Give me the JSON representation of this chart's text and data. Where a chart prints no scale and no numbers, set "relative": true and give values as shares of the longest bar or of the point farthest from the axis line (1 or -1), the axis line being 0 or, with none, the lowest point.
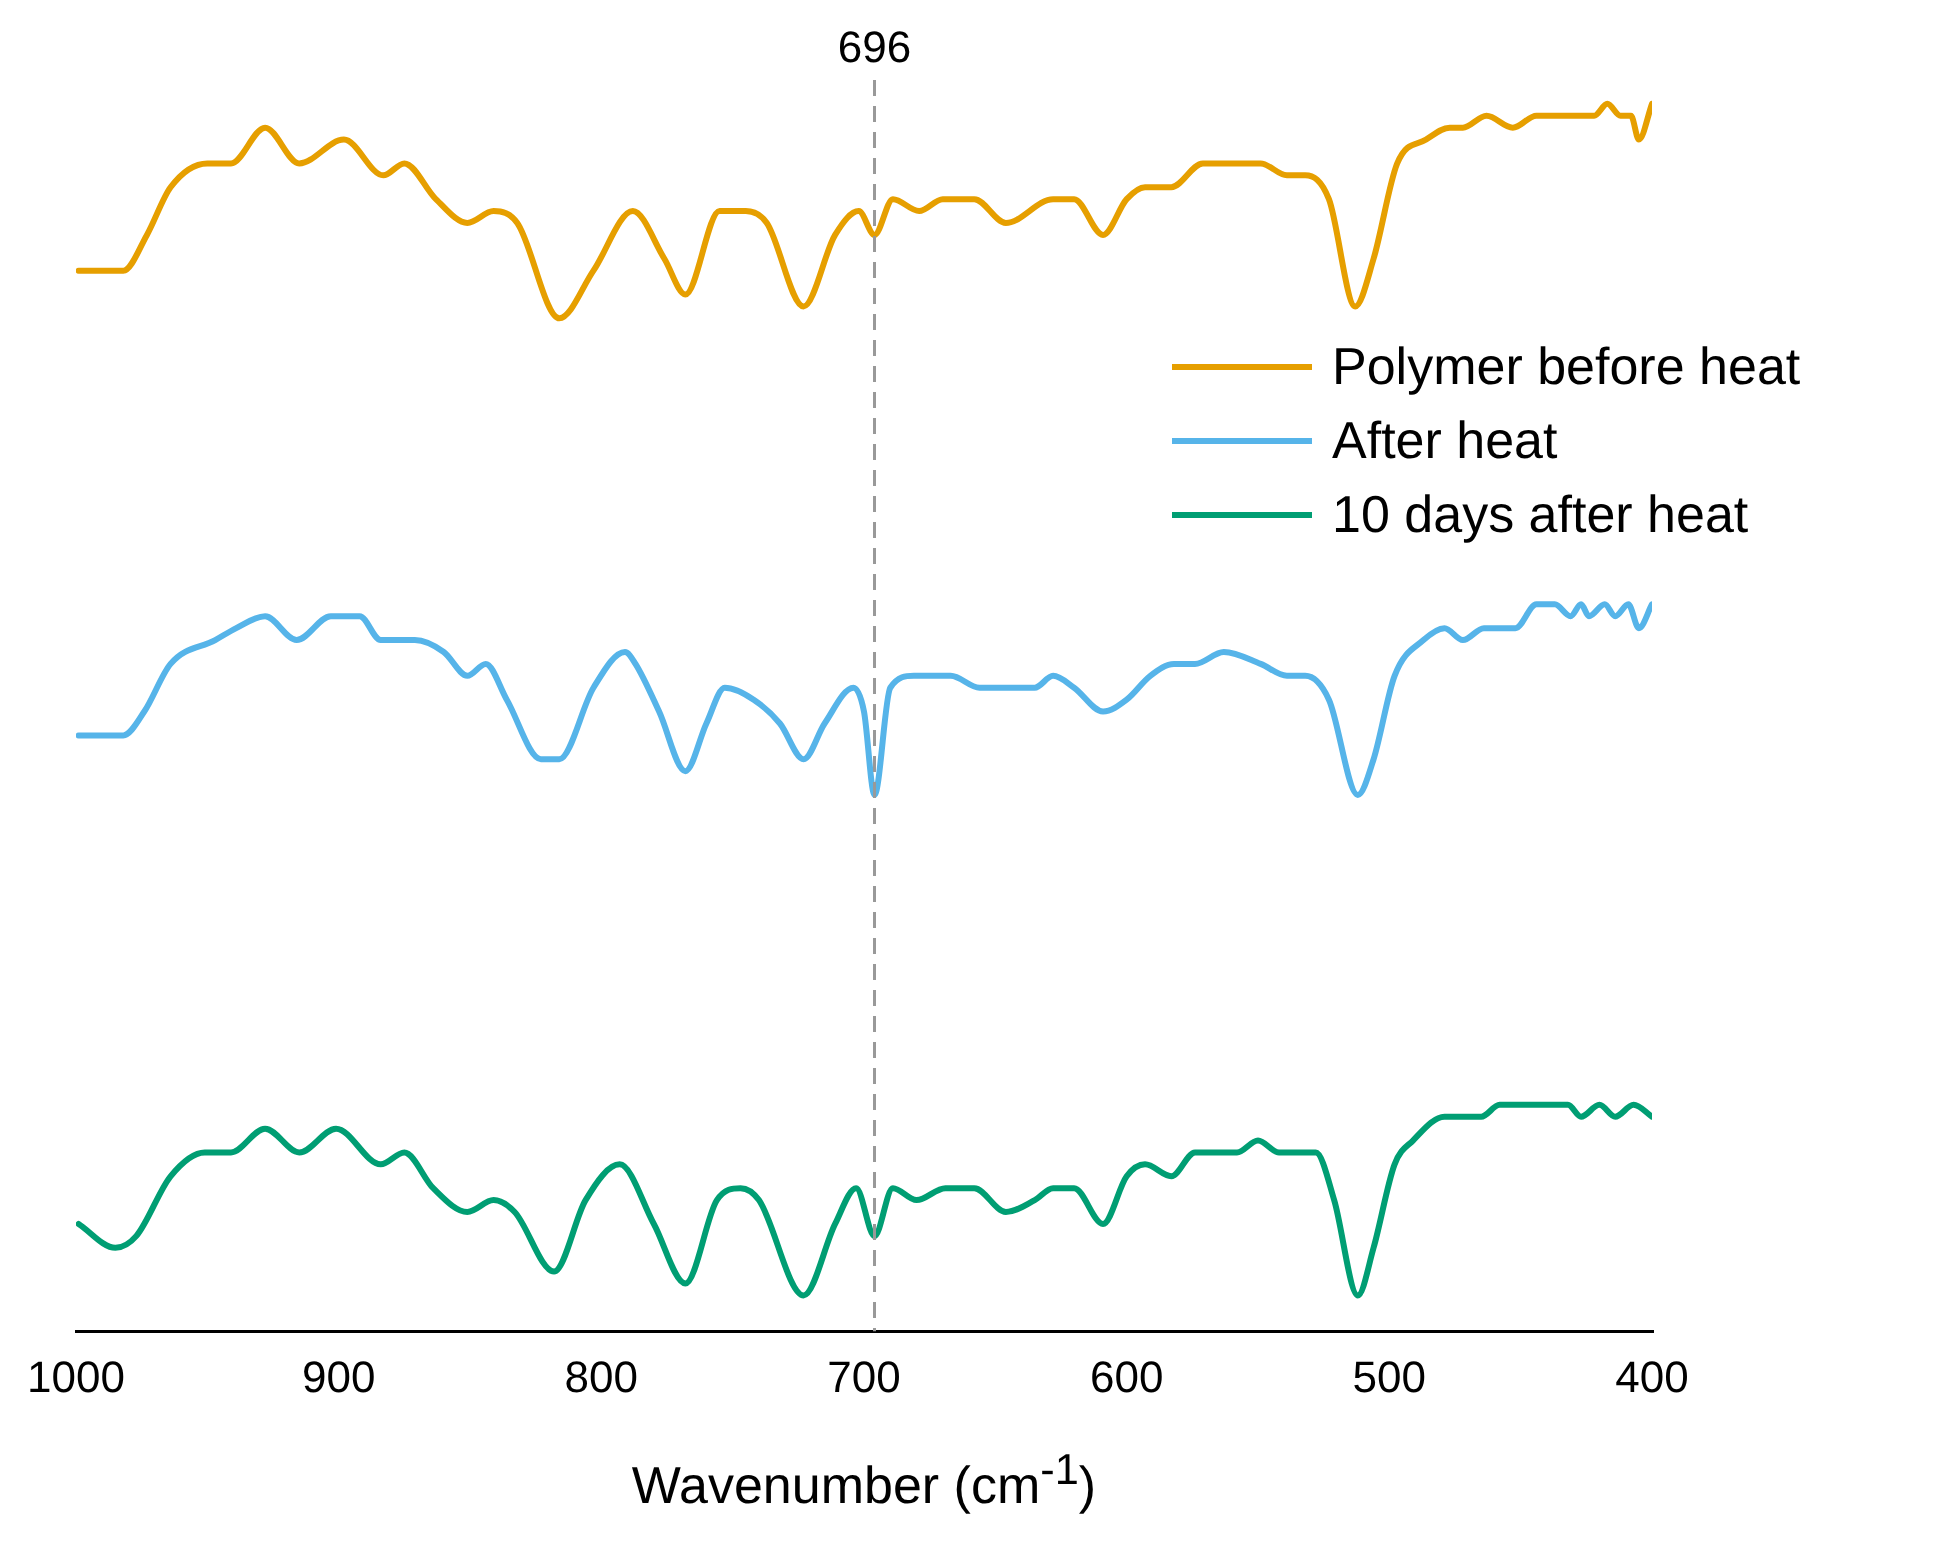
{
  "chart_data": {
    "type": "line",
    "relative": true,
    "xlabel": "Wavenumber (cm$^{-1}$)",
    "xlim": [
      1000,
      400
    ],
    "xticks": [
      1000,
      900,
      800,
      700,
      600,
      500,
      400
    ],
    "legend": "top right",
    "grid": false,
    "marker": "none",
    "line_style": "solid",
    "ref_lines": [
      {
        "axis": "x",
        "value": 696,
        "label": "696",
        "color": "#999999",
        "line_style": "dashed"
      }
    ],
    "series": [
      {
        "name": "Polymer before heat",
        "color": "#e69f00",
        "x": [
          999,
          982,
          973,
          964,
          950,
          941,
          928,
          915,
          898,
          883,
          875,
          863,
          851,
          841,
          832,
          816,
          803,
          788,
          776,
          768,
          755,
          745,
          737,
          723,
          711,
          702,
          696,
          689,
          679,
          670,
          658,
          646,
          628,
          620,
          609,
          600,
          593,
          583,
          571,
          564,
          557,
          549,
          539,
          532,
          523,
          513,
          506,
          497,
          486,
          477,
          472,
          463,
          453,
          444,
          437,
          427,
          422,
          417,
          412,
          408,
          405,
          400
        ],
        "values": [
          0.86,
          0.86,
          0.89,
          0.93,
          0.95,
          0.95,
          0.98,
          0.95,
          0.97,
          0.94,
          0.95,
          0.92,
          0.9,
          0.91,
          0.9,
          0.82,
          0.86,
          0.91,
          0.87,
          0.84,
          0.91,
          0.91,
          0.9,
          0.83,
          0.89,
          0.91,
          0.89,
          0.92,
          0.91,
          0.92,
          0.92,
          0.9,
          0.92,
          0.92,
          0.89,
          0.92,
          0.93,
          0.93,
          0.95,
          0.95,
          0.95,
          0.95,
          0.94,
          0.94,
          0.92,
          0.83,
          0.87,
          0.95,
          0.97,
          0.98,
          0.98,
          0.99,
          0.98,
          0.99,
          0.99,
          0.99,
          0.99,
          1.0,
          0.99,
          0.99,
          0.97,
          1.0
        ]
      },
      {
        "name": "After heat",
        "color": "#56b4e9",
        "x": [
          999,
          993,
          982,
          974,
          964,
          947,
          939,
          928,
          916,
          903,
          892,
          884,
          871,
          860,
          851,
          844,
          836,
          823,
          816,
          803,
          791,
          787,
          778,
          768,
          760,
          753,
          742,
          732,
          723,
          715,
          704,
          700,
          696,
          690,
          681,
          667,
          656,
          644,
          635,
          628,
          620,
          609,
          600,
          591,
          582,
          574,
          563,
          549,
          539,
          532,
          523,
          512,
          506,
          498,
          487,
          479,
          472,
          464,
          456,
          452,
          444,
          437,
          431,
          427,
          424,
          418,
          414,
          409,
          405,
          400
        ],
        "values": [
          0.47,
          0.47,
          0.47,
          0.49,
          0.53,
          0.55,
          0.56,
          0.57,
          0.55,
          0.57,
          0.57,
          0.55,
          0.55,
          0.54,
          0.52,
          0.53,
          0.5,
          0.45,
          0.45,
          0.51,
          0.54,
          0.53,
          0.49,
          0.44,
          0.48,
          0.51,
          0.5,
          0.48,
          0.45,
          0.48,
          0.51,
          0.49,
          0.42,
          0.51,
          0.52,
          0.52,
          0.51,
          0.51,
          0.51,
          0.52,
          0.51,
          0.49,
          0.5,
          0.52,
          0.53,
          0.53,
          0.54,
          0.53,
          0.52,
          0.52,
          0.5,
          0.42,
          0.45,
          0.52,
          0.55,
          0.56,
          0.55,
          0.56,
          0.56,
          0.56,
          0.58,
          0.58,
          0.57,
          0.58,
          0.57,
          0.58,
          0.57,
          0.58,
          0.56,
          0.58
        ]
      },
      {
        "name": "10 days after heat",
        "color": "#009e73",
        "x": [
          999,
          985,
          977,
          964,
          951,
          941,
          928,
          915,
          901,
          884,
          875,
          864,
          851,
          841,
          833,
          818,
          806,
          793,
          780,
          768,
          756,
          747,
          740,
          723,
          711,
          703,
          696,
          689,
          680,
          669,
          658,
          646,
          635,
          628,
          620,
          609,
          600,
          593,
          583,
          574,
          566,
          558,
          550,
          542,
          534,
          528,
          521,
          512,
          506,
          498,
          491,
          479,
          473,
          465,
          458,
          445,
          437,
          432,
          427,
          420,
          414,
          407,
          400
        ],
        "values": [
          0.06,
          0.04,
          0.05,
          0.1,
          0.12,
          0.12,
          0.14,
          0.12,
          0.14,
          0.11,
          0.12,
          0.09,
          0.07,
          0.08,
          0.07,
          0.02,
          0.08,
          0.11,
          0.06,
          0.01,
          0.08,
          0.09,
          0.08,
          0.0,
          0.06,
          0.09,
          0.05,
          0.09,
          0.08,
          0.09,
          0.09,
          0.07,
          0.08,
          0.09,
          0.09,
          0.06,
          0.1,
          0.11,
          0.1,
          0.12,
          0.12,
          0.12,
          0.13,
          0.12,
          0.12,
          0.12,
          0.08,
          0.0,
          0.04,
          0.11,
          0.13,
          0.15,
          0.15,
          0.15,
          0.16,
          0.16,
          0.16,
          0.16,
          0.15,
          0.16,
          0.15,
          0.16,
          0.15
        ]
      }
    ]
  }
}
